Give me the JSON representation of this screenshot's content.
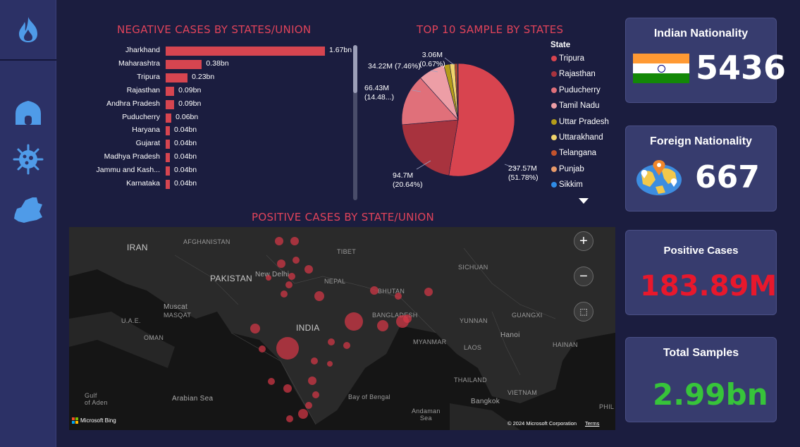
{
  "sidebar": {
    "items": [
      {
        "icon": "flame-icon"
      },
      {
        "icon": "home-icon"
      },
      {
        "icon": "virus-icon"
      },
      {
        "icon": "state-map-icon"
      }
    ]
  },
  "negative_chart": {
    "title": "NEGATIVE CASES BY STATES/UNION",
    "bars": [
      {
        "label": "Jharkhand",
        "value_text": "1.67bn",
        "value": 1.67
      },
      {
        "label": "Maharashtra",
        "value_text": "0.38bn",
        "value": 0.38
      },
      {
        "label": "Tripura",
        "value_text": "0.23bn",
        "value": 0.23
      },
      {
        "label": "Rajasthan",
        "value_text": "0.09bn",
        "value": 0.09
      },
      {
        "label": "Andhra Pradesh",
        "value_text": "0.09bn",
        "value": 0.09
      },
      {
        "label": "Puducherry",
        "value_text": "0.06bn",
        "value": 0.06
      },
      {
        "label": "Haryana",
        "value_text": "0.04bn",
        "value": 0.04
      },
      {
        "label": "Gujarat",
        "value_text": "0.04bn",
        "value": 0.04
      },
      {
        "label": "Madhya Pradesh",
        "value_text": "0.04bn",
        "value": 0.04
      },
      {
        "label": "Jammu and Kash...",
        "value_text": "0.04bn",
        "value": 0.04
      },
      {
        "label": "Karnataka",
        "value_text": "0.04bn",
        "value": 0.04
      }
    ],
    "color": "#d64550"
  },
  "pie_chart": {
    "title": "TOP 10 SAMPLE BY STATES",
    "legend_title": "State",
    "slices": [
      {
        "name": "Tripura",
        "value": 237.57,
        "color": "#d8444f"
      },
      {
        "name": "Rajasthan",
        "value": 94.7,
        "color": "#a8333e"
      },
      {
        "name": "Puducherry",
        "value": 66.43,
        "color": "#e0707a"
      },
      {
        "name": "Tamil Nadu",
        "value": 34.22,
        "color": "#ed9ea6"
      },
      {
        "name": "Uttar Pradesh",
        "value": 7.5,
        "color": "#b39b1a"
      },
      {
        "name": "Uttarakhand",
        "value": 6.5,
        "color": "#efd36c"
      },
      {
        "name": "Telangana",
        "value": 3.06,
        "color": "#c2532d"
      },
      {
        "name": "Punjab",
        "value": 1.0,
        "color": "#e89a6a"
      },
      {
        "name": "Sikkim",
        "value": 0.3,
        "color": "#2f8be6"
      }
    ],
    "labels": [
      {
        "key": "tripura",
        "line1": "237.57M",
        "line2": "(51.78%)"
      },
      {
        "key": "rajasthan",
        "line1": "94.7M",
        "line2": "(20.64%)"
      },
      {
        "key": "puducherry",
        "line1": "66.43M",
        "line2": "(14.48...)"
      },
      {
        "key": "tamilnadu",
        "line1": "34.22M (7.46%)",
        "line2": ""
      },
      {
        "key": "telangana",
        "line1": "3.06M",
        "line2": "(0.67%)"
      }
    ]
  },
  "map": {
    "title": "POSITIVE CASES BY STATE/UNION",
    "labels": {
      "iran": "IRAN",
      "afghanistan": "AFGHANISTAN",
      "pakistan": "PAKISTAN",
      "tibet": "TIBET",
      "nepal": "NEPAL",
      "bhutan": "BHUTAN",
      "india": "INDIA",
      "bangladesh": "BANGLADESH",
      "myanmar": "MYANMAR",
      "laos": "LAOS",
      "thailand": "THAILAND",
      "vietnam": "VIETNAM",
      "oman": "OMAN",
      "uae": "U.A.E.",
      "muscat": "Muscat",
      "new_delhi": "New Delhi",
      "bangkok": "Bangkok",
      "hanoi": "Hanoi",
      "arabian_sea": "Arabian Sea",
      "bay_of_bengal": "Bay of Bengal",
      "andaman_sea": "Andaman\nSea",
      "gulf": "Gulf\nof Aden",
      "sichuan": "SICHUAN",
      "guangxi": "GUANGXI",
      "yunnan": "YUNNAN",
      "hainan": "HAINAN",
      "phil": "PHIL",
      "masqat": "MASQAT"
    },
    "attribution_left": "Microsoft Bing",
    "attribution_right": "© 2024 Microsoft Corporation",
    "terms": "Terms",
    "zoom_in": "+",
    "zoom_out": "−"
  },
  "cards": {
    "indian": {
      "title": "Indian Nationality",
      "value": "5436"
    },
    "foreign": {
      "title": "Foreign Nationality",
      "value": "667"
    },
    "positive": {
      "title": "Positive Cases",
      "value": "183.89M",
      "color": "#e8182c"
    },
    "samples": {
      "title": "Total Samples",
      "value": "2.99bn",
      "color": "#37c43a"
    }
  }
}
